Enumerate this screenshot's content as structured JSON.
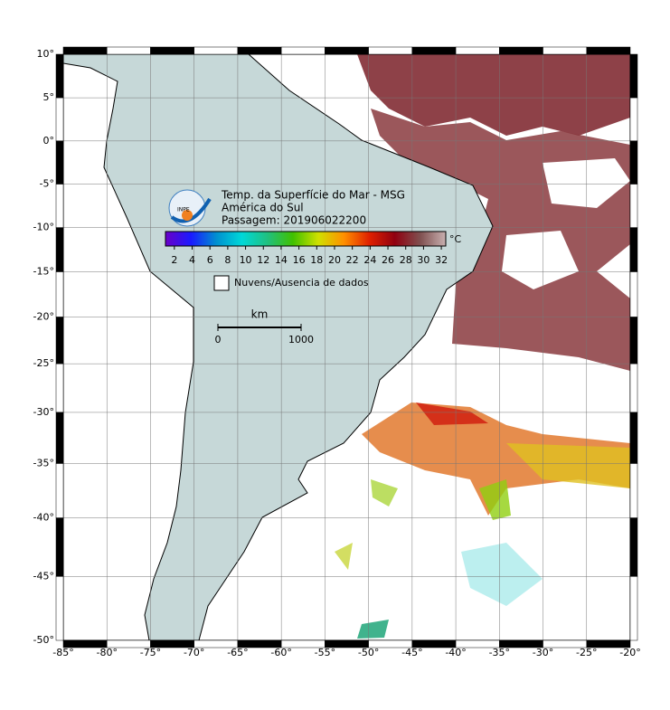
{
  "map": {
    "title": "Temp. da Superfície do Mar - MSG",
    "subtitle": "América do Sul",
    "pass": "Passagem: 201906022200",
    "logo": "INPE",
    "xlim": [
      -85,
      -20
    ],
    "ylim": [
      -50,
      10
    ],
    "xticks": [
      {
        "value": -85,
        "label": "-85°"
      },
      {
        "value": -80,
        "label": "-80°"
      },
      {
        "value": -75,
        "label": "-75°"
      },
      {
        "value": -70,
        "label": "-70°"
      },
      {
        "value": -65,
        "label": "-65°"
      },
      {
        "value": -60,
        "label": "-60°"
      },
      {
        "value": -55,
        "label": "-55°"
      },
      {
        "value": -50,
        "label": "-50°"
      },
      {
        "value": -45,
        "label": "-45°"
      },
      {
        "value": -40,
        "label": "-40°"
      },
      {
        "value": -35,
        "label": "-35°"
      },
      {
        "value": -30,
        "label": "-30°"
      },
      {
        "value": -25,
        "label": "-25°"
      },
      {
        "value": -20,
        "label": "-20°"
      }
    ],
    "yticks": [
      {
        "value": 10,
        "label": "10°"
      },
      {
        "value": 5,
        "label": "5°"
      },
      {
        "value": 0,
        "label": "0°"
      },
      {
        "value": -5,
        "label": "-5°"
      },
      {
        "value": -10,
        "label": "-10°"
      },
      {
        "value": -15,
        "label": "-15°"
      },
      {
        "value": -20,
        "label": "-20°"
      },
      {
        "value": -25,
        "label": "-25°"
      },
      {
        "value": -30,
        "label": "-30°"
      },
      {
        "value": -35,
        "label": "-35°"
      },
      {
        "value": -40,
        "label": "-40°"
      },
      {
        "value": -45,
        "label": "-45°"
      },
      {
        "value": -50,
        "label": "-50°"
      }
    ],
    "colorbar": {
      "unit": "°C",
      "clim": [
        1,
        32.5
      ],
      "ticks": [
        2,
        4,
        6,
        8,
        10,
        12,
        14,
        16,
        18,
        20,
        22,
        24,
        26,
        28,
        30,
        32
      ],
      "colors": [
        "#6a00c8",
        "#1a1aff",
        "#0090d0",
        "#00d8d8",
        "#20c080",
        "#40c000",
        "#d0e000",
        "#ff9000",
        "#e02000",
        "#900010",
        "#805050",
        "#c8b0b0"
      ]
    },
    "legend": "Nuvens/Ausencia de dados",
    "scale": {
      "unit": "km",
      "ticks": [
        0,
        1000
      ]
    }
  }
}
